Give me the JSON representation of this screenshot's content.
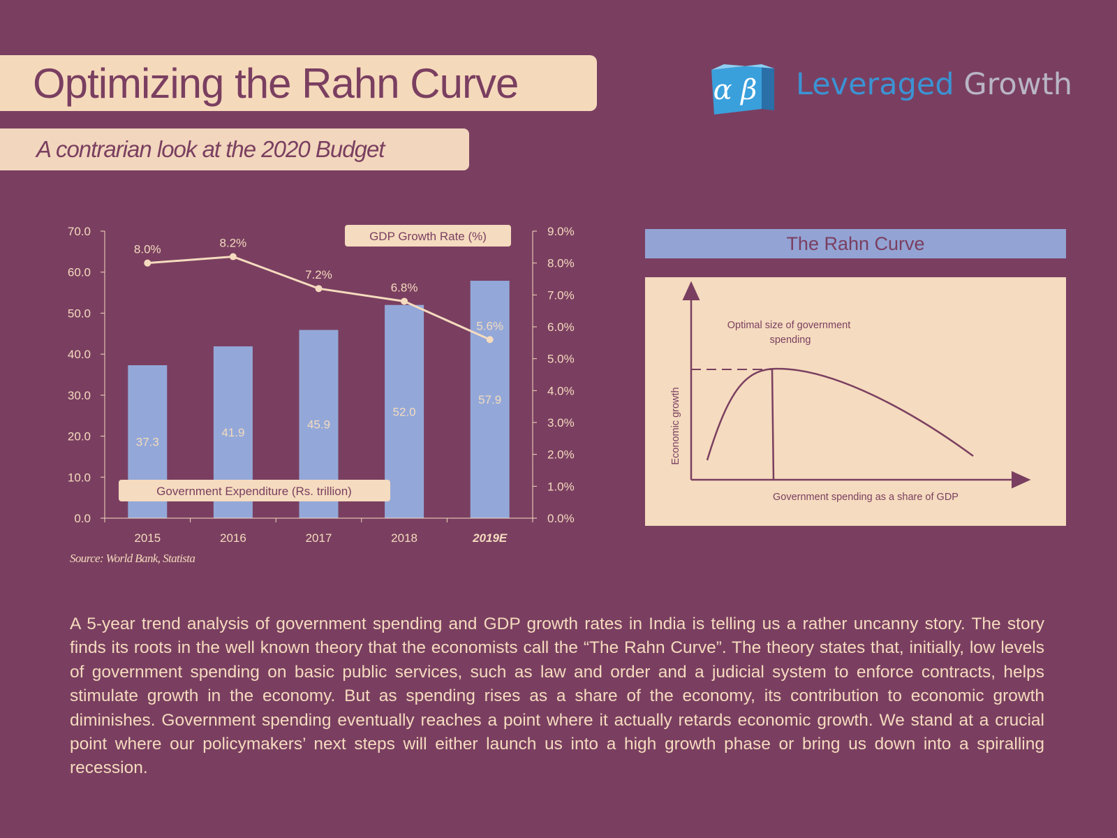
{
  "header": {
    "title": "Optimizing the Rahn Curve",
    "subtitle": "A contrarian look at the 2020 Budget"
  },
  "logo": {
    "symbols": "α β",
    "word1": "Leveraged",
    "word2": "Growth",
    "colors": {
      "word1": "#3b93d4",
      "word2": "#b9b5c6",
      "cube": "#3aa0dc"
    }
  },
  "chart_data": [
    {
      "type": "bar+line",
      "categories": [
        "2015",
        "2016",
        "2017",
        "2018",
        "2019E"
      ],
      "series": [
        {
          "name": "Government Expenditure (Rs. trillion)",
          "type": "bar",
          "axis": "left",
          "values": [
            37.3,
            41.9,
            45.9,
            52.0,
            57.9
          ],
          "value_labels": [
            "37.3",
            "41.9",
            "45.9",
            "52.0",
            "57.9"
          ]
        },
        {
          "name": "GDP Growth Rate (%)",
          "type": "line",
          "axis": "right",
          "values": [
            8.0,
            8.2,
            7.2,
            6.8,
            5.6
          ],
          "value_labels": [
            "8.0%",
            "8.2%",
            "7.2%",
            "6.8%",
            "5.6%"
          ]
        }
      ],
      "left_axis": {
        "ylim": [
          0,
          70
        ],
        "ticks": [
          "0.0",
          "10.0",
          "20.0",
          "30.0",
          "40.0",
          "50.0",
          "60.0",
          "70.0"
        ]
      },
      "right_axis": {
        "ylim": [
          0,
          9
        ],
        "ticks": [
          "0.0%",
          "1.0%",
          "2.0%",
          "3.0%",
          "4.0%",
          "5.0%",
          "6.0%",
          "7.0%",
          "8.0%",
          "9.0%"
        ]
      },
      "grid": false,
      "legend": "inline boxes",
      "colors": {
        "bar": "#93a8d8",
        "line": "#f5dbbf",
        "axis": "#f5dbbf",
        "label_box": "#f5dbbf",
        "label_text": "#7a3f60"
      }
    },
    {
      "type": "line",
      "title": "The Rahn Curve",
      "xlabel": "Government spending as a share of GDP",
      "ylabel": "Economic growth",
      "annotations": [
        "Optimal size of government spending"
      ],
      "colors": {
        "curve": "#7a3f60",
        "header": "#93a3d4",
        "panel": "#f5dbbf"
      }
    }
  ],
  "source": "Source: World Bank, Statista",
  "body": "A 5-year trend analysis of government spending and GDP growth rates in India is telling us a rather uncanny story. The story finds its roots in the well known theory that the economists call the “The Rahn Curve”. The theory states that, initially, low levels of government spending on basic public services, such as law and order and a judicial system to enforce contracts, helps stimulate growth in the economy. But as spending rises as a share of the economy, its contribution to economic growth diminishes. Government spending eventually reaches a point where it actually retards economic growth. We stand at a crucial point where our policymakers’ next steps will either launch us into a high growth phase or bring us down into a spiralling recession."
}
